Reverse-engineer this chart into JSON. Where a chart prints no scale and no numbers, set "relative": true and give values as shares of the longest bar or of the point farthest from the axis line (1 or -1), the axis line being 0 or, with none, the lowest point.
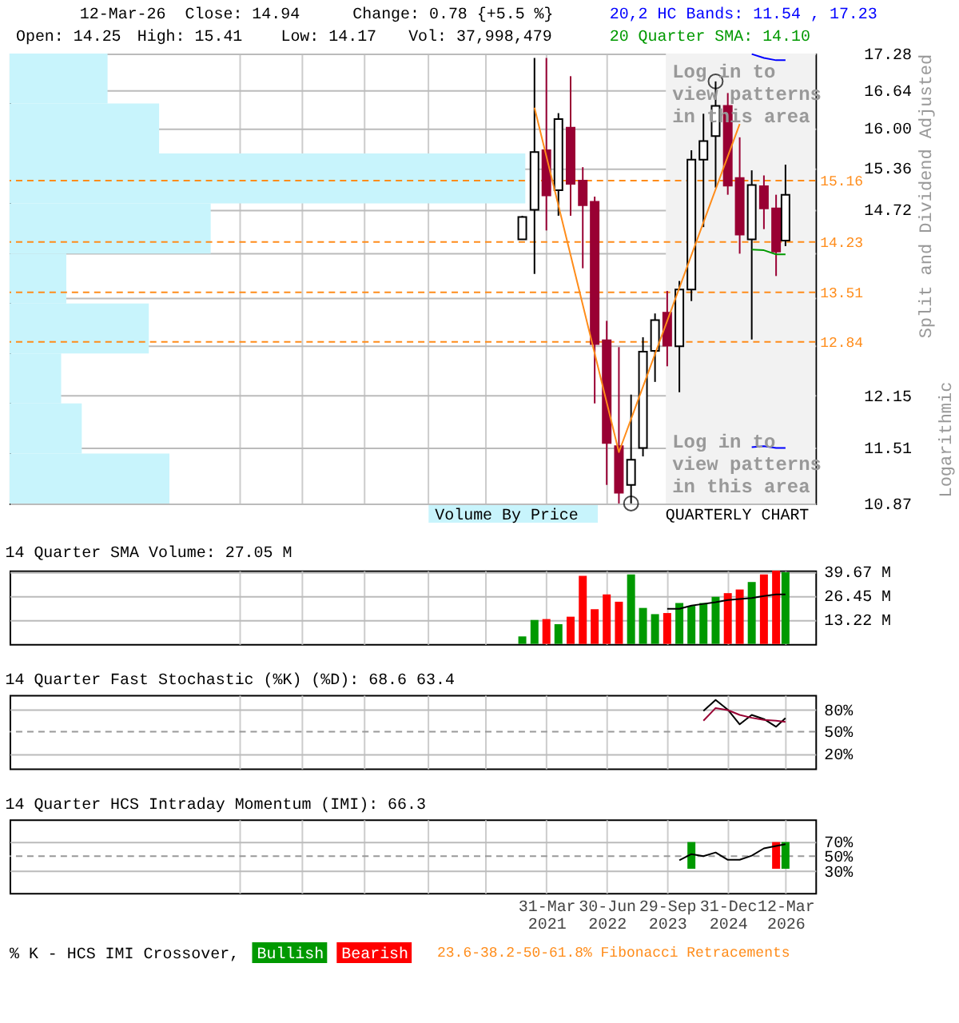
{
  "chart_data": [
    {
      "type": "candlestick",
      "x": [
        "2020-09-30",
        "2020-12-31",
        "2021-03-31",
        "2021-06-30",
        "2021-09-30",
        "2021-12-31",
        "2022-03-31",
        "2022-06-30",
        "2022-09-30",
        "2022-12-31",
        "2023-03-31",
        "2023-06-30",
        "2023-09-30",
        "2023-12-31",
        "2024-03-31",
        "2024-06-30",
        "2024-09-30",
        "2024-12-31",
        "2025-03-31",
        "2025-06-30",
        "2025-09-30",
        "2025-12-31",
        "2026-03-12"
      ],
      "ohlc": [
        [
          14.27,
          14.62,
          14.27,
          14.6
        ],
        [
          14.71,
          17.2,
          13.77,
          15.61
        ],
        [
          15.64,
          17.2,
          14.4,
          14.93
        ],
        [
          15.01,
          16.25,
          14.62,
          16.15
        ],
        [
          16.01,
          16.88,
          14.62,
          15.11
        ],
        [
          15.16,
          15.37,
          13.85,
          14.78
        ],
        [
          14.83,
          14.91,
          12.05,
          12.81
        ],
        [
          12.86,
          13.12,
          11.08,
          11.57
        ],
        [
          11.53,
          12.77,
          10.87,
          10.99
        ],
        [
          11.08,
          12.16,
          10.87,
          11.37
        ],
        [
          11.51,
          12.9,
          11.41,
          12.71
        ],
        [
          12.72,
          13.22,
          12.32,
          13.13
        ],
        [
          13.23,
          13.53,
          12.52,
          12.79
        ],
        [
          12.78,
          13.67,
          12.19,
          13.55
        ],
        [
          13.55,
          15.64,
          13.39,
          15.49
        ],
        [
          15.49,
          16.24,
          14.45,
          15.79
        ],
        [
          15.87,
          16.79,
          15.05,
          16.37
        ],
        [
          16.37,
          16.59,
          14.94,
          15.08
        ],
        [
          15.2,
          15.85,
          14.06,
          14.34
        ],
        [
          14.27,
          15.32,
          12.87,
          15.09
        ],
        [
          15.07,
          15.24,
          14.42,
          14.73
        ],
        [
          14.73,
          14.94,
          13.74,
          14.09
        ],
        [
          14.25,
          15.41,
          14.17,
          14.94
        ]
      ],
      "colors": [
        "#000000",
        "#000000",
        "#990033",
        "#000000",
        "#990033",
        "#990033",
        "#990033",
        "#990033",
        "#990033",
        "#000000",
        "#000000",
        "#000000",
        "#990033",
        "#000000",
        "#000000",
        "#000000",
        "#000000",
        "#990033",
        "#990033",
        "#000000",
        "#990033",
        "#990033",
        "#000000"
      ],
      "xlim": [
        "2010-02-20",
        "2026-10-24"
      ],
      "xticks": [
        {
          "value": "2014-11-25",
          "label": null
        },
        {
          "value": "2016-03-10",
          "label": null
        },
        {
          "value": "2017-06-25",
          "label": null
        },
        {
          "value": "2018-10-10",
          "label": null
        },
        {
          "value": "2019-12-25",
          "label": null
        },
        {
          "value": "2021-03-31",
          "label": null
        },
        {
          "value": "2022-06-30",
          "label": null
        },
        {
          "value": "2023-09-29",
          "label": null
        },
        {
          "value": "2024-12-31",
          "label": null
        },
        {
          "value": "2026-03-12",
          "label": null
        }
      ],
      "ylim": [
        10.87,
        17.28
      ],
      "yticks": [
        10.87,
        11.51,
        12.15,
        {
          "value": 12.8,
          "label": null
        },
        {
          "value": 13.44,
          "label": null
        },
        {
          "value": 14.08,
          "label": null
        },
        14.72,
        15.36,
        {
          "value": 16,
          "label": "16.00"
        },
        16.64,
        17.28
      ],
      "log": true,
      "grid": true,
      "tick_labels": "y",
      "legend": false,
      "ylabel": "Split and Dividend Adjusted",
      "series": [
        {
          "type": "line",
          "color": "#ff8c1a",
          "x": [
            "2020-12-31",
            "2022-09-30",
            "2025-03-31"
          ],
          "values": [
            16.34,
            11.46,
            16.07
          ]
        },
        {
          "type": "line",
          "color": "#0000ff",
          "x": [
            "2025-06-30",
            "2025-09-30",
            "2025-12-31",
            "2026-03-12"
          ],
          "values": [
            17.27,
            17.2,
            17.16,
            17.16
          ]
        },
        {
          "type": "line",
          "color": "#0000ff",
          "x": [
            "2025-06-30",
            "2025-09-30",
            "2025-12-31",
            "2026-03-12"
          ],
          "values": [
            11.52,
            11.53,
            11.51,
            11.51
          ]
        },
        {
          "type": "line",
          "color": "#009900",
          "x": [
            "2025-06-30",
            "2025-09-30",
            "2025-12-31",
            "2026-03-12"
          ],
          "values": [
            14.12,
            14.11,
            14.05,
            14.05
          ]
        },
        {
          "type": "scatter",
          "marker": "circle",
          "color": "#000000",
          "x": [
            "2022-12-31",
            "2024-09-30"
          ],
          "values": [
            10.87,
            16.79
          ]
        }
      ],
      "ref_lines": [
        {
          "axis": "y",
          "value": 15.16,
          "label": "15.16",
          "color": "#ff8c1a",
          "line_style": "dashed"
        },
        {
          "axis": "y",
          "value": 14.23,
          "label": "14.23",
          "color": "#ff8c1a",
          "line_style": "dashed"
        },
        {
          "axis": "y",
          "value": 13.51,
          "label": "13.51",
          "color": "#ff8c1a",
          "line_style": "dashed"
        },
        {
          "axis": "y",
          "value": 12.84,
          "label": "12.84",
          "color": "#ff8c1a",
          "line_style": "dashed"
        }
      ],
      "bands": [
        {
          "axis": "x",
          "from": "2023-09-20",
          "to": "2026-10-24",
          "color": "#f2f2f2"
        }
      ],
      "annotations": [
        "12-Mar-26",
        "Close: 14.94",
        "Change: 0.78 {+5.5 %}",
        "Open: 14.25",
        "High: 15.41",
        "Low: 14.17",
        "Vol: 37,998,479",
        "20,2 HC Bands: 11.54 , 17.23",
        "20 Quarter SMA: 14.10",
        "Log in to\nview patterns\nin this area",
        "Log in to\nview patterns\nin this area",
        "Logarithmic",
        "QUARTERLY CHART"
      ]
    },
    {
      "type": "bar",
      "orientation": "horizontal",
      "relative": true,
      "categories": [
        null,
        null,
        null,
        null,
        null,
        null,
        null,
        null,
        null
      ],
      "series": [
        {
          "name": "Volume By Price",
          "color": "#c8f4fc",
          "values": [
            0.19,
            0.29,
            1,
            0.39,
            0.11,
            0.27,
            0.1,
            0.14,
            0.31
          ]
        }
      ]
    },
    {
      "type": "bar",
      "title": "14 Quarter SMA Volume: 27.05 M",
      "x": [
        "2020-09-30",
        "2020-12-31",
        "2021-03-31",
        "2021-06-30",
        "2021-09-30",
        "2021-12-31",
        "2022-03-31",
        "2022-06-30",
        "2022-09-30",
        "2022-12-31",
        "2023-03-31",
        "2023-06-30",
        "2023-09-30",
        "2023-12-31",
        "2024-03-31",
        "2024-06-30",
        "2024-09-30",
        "2024-12-31",
        "2025-03-31",
        "2025-06-30",
        "2025-09-30",
        "2025-12-31",
        "2026-03-12"
      ],
      "xlim": [
        "2010-02-20",
        "2026-10-24"
      ],
      "xticks": [
        {
          "value": "2014-11-25",
          "label": null
        },
        {
          "value": "2016-03-10",
          "label": null
        },
        {
          "value": "2017-06-25",
          "label": null
        },
        {
          "value": "2018-10-10",
          "label": null
        },
        {
          "value": "2019-12-25",
          "label": null
        },
        {
          "value": "2021-03-31",
          "label": null
        },
        {
          "value": "2022-06-30",
          "label": null
        },
        {
          "value": "2023-09-29",
          "label": null
        },
        {
          "value": "2024-12-31",
          "label": null
        },
        {
          "value": "2026-03-12",
          "label": null
        }
      ],
      "ylim": [
        0,
        40.2
      ],
      "yticks": [
        {
          "value": 13.22,
          "label": "13.22 M"
        },
        {
          "value": 26.45,
          "label": "26.45 M"
        },
        {
          "value": 39.67,
          "label": "39.67 M"
        }
      ],
      "grid": true,
      "tick_labels": "y",
      "legend": false,
      "series": [
        {
          "type": "bar",
          "values": [
            4.1,
            13.1,
            13.6,
            10.8,
            14.9,
            37.3,
            19.0,
            27.1,
            23.1,
            38.0,
            19.7,
            16.3,
            16.9,
            22.4,
            20.8,
            22.4,
            25.8,
            27.8,
            29.8,
            33.9,
            38.0,
            40.1,
            39.3
          ],
          "colors": [
            "#009900",
            "#009900",
            "#ff0000",
            "#009900",
            "#ff0000",
            "#ff0000",
            "#ff0000",
            "#ff0000",
            "#ff0000",
            "#009900",
            "#009900",
            "#009900",
            "#ff0000",
            "#009900",
            "#009900",
            "#009900",
            "#009900",
            "#ff0000",
            "#ff0000",
            "#009900",
            "#ff0000",
            "#ff0000",
            "#009900"
          ]
        },
        {
          "type": "line",
          "color": "#000000",
          "x": [
            "2023-09-30",
            "2023-12-31",
            "2024-03-31",
            "2024-06-30",
            "2024-09-30",
            "2024-12-31",
            "2025-03-31",
            "2025-06-30",
            "2025-09-30",
            "2025-12-31",
            "2026-03-12"
          ],
          "values": [
            19.2,
            19.2,
            21.0,
            21.9,
            22.8,
            24.0,
            24.6,
            25.1,
            26.2,
            27.1,
            27.05
          ]
        }
      ]
    },
    {
      "type": "line",
      "title": "14 Quarter Fast Stochastic (%K) (%D): 68.6  63.4",
      "xlim": [
        "2010-02-20",
        "2026-10-24"
      ],
      "xticks": [
        {
          "value": "2014-11-25",
          "label": null
        },
        {
          "value": "2016-03-10",
          "label": null
        },
        {
          "value": "2017-06-25",
          "label": null
        },
        {
          "value": "2018-10-10",
          "label": null
        },
        {
          "value": "2019-12-25",
          "label": null
        },
        {
          "value": "2021-03-31",
          "label": null
        },
        {
          "value": "2022-06-30",
          "label": null
        },
        {
          "value": "2023-09-29",
          "label": null
        },
        {
          "value": "2024-12-31",
          "label": null
        },
        {
          "value": "2026-03-12",
          "label": null
        }
      ],
      "ylim": [
        0,
        100
      ],
      "yticks": [
        {
          "value": 20,
          "label": "20%"
        },
        {
          "value": 50,
          "label": "50%"
        },
        {
          "value": 80,
          "label": "80%"
        }
      ],
      "grid": true,
      "tick_labels": "y",
      "legend": false,
      "series": [
        {
          "type": "line",
          "color": "#000000",
          "x": [
            "2024-12-31",
            "2025-03-31",
            "2025-06-30",
            "2025-09-30",
            "2025-12-31",
            "2026-03-12",
            "2024-09-30",
            "2024-06-30"
          ],
          "values": [
            80,
            60,
            72.8,
            67.2,
            56.7,
            68.6,
            93.3,
            78.3
          ]
        },
        {
          "type": "line",
          "color": "#990033",
          "x": [
            "2024-06-30",
            "2024-09-30",
            "2024-12-31",
            "2025-03-31",
            "2025-06-30",
            "2025-09-30",
            "2025-12-31",
            "2026-03-12"
          ],
          "values": [
            65,
            82.2,
            79.4,
            72.8,
            68.9,
            66.1,
            65,
            63.4
          ]
        }
      ],
      "ref_lines": [
        {
          "axis": "y",
          "value": 50,
          "color": "#999999",
          "line_style": "dashed"
        }
      ]
    },
    {
      "type": "line",
      "title": "14 Quarter HCS Intraday Momentum (IMI): 66.3",
      "xlim": [
        "2010-02-20",
        "2026-10-24"
      ],
      "xticks": [
        {
          "value": "2014-11-25",
          "label": null
        },
        {
          "value": "2016-03-10",
          "label": null
        },
        {
          "value": "2017-06-25",
          "label": null
        },
        {
          "value": "2018-10-10",
          "label": null
        },
        {
          "value": "2019-12-25",
          "label": null
        },
        {
          "value": "2021-03-31",
          "label": "31-Mar 2021"
        },
        {
          "value": "2022-06-30",
          "label": "30-Jun 2022"
        },
        {
          "value": "2023-09-29",
          "label": "29-Sep 2023"
        },
        {
          "value": "2024-12-31",
          "label": "31-Dec 2024"
        },
        {
          "value": "2026-03-12",
          "label": "12-Mar 2026"
        }
      ],
      "ylim": [
        0,
        100
      ],
      "yticks": [
        {
          "value": 30,
          "label": "30%"
        },
        {
          "value": 50,
          "label": "50%"
        },
        {
          "value": 70,
          "label": "70%"
        }
      ],
      "grid": true,
      "legend": "bottom",
      "series": [
        {
          "name": "Bullish",
          "type": "bar",
          "color": "#009900",
          "x": [
            "2024-03-31",
            "2026-03-12"
          ],
          "base": [
            32.8,
            32.8
          ],
          "values": [
            36.4,
            36.4
          ]
        },
        {
          "name": "Bearish",
          "type": "bar",
          "color": "#ff0000",
          "x": [
            "2025-12-31"
          ],
          "base": [
            32.8
          ],
          "values": [
            36.4
          ]
        },
        {
          "type": "line",
          "color": "#000000",
          "x": [
            "2023-12-31",
            "2024-03-31",
            "2024-06-30",
            "2024-09-30",
            "2024-12-31",
            "2025-03-31",
            "2025-06-30",
            "2025-09-30",
            "2025-12-31",
            "2026-03-12"
          ],
          "values": [
            44.4,
            52.8,
            50,
            55,
            45,
            45,
            50.6,
            60.6,
            63.9,
            66.3
          ]
        }
      ],
      "ref_lines": [
        {
          "axis": "y",
          "value": 50,
          "color": "#999999",
          "line_style": "dashed"
        }
      ],
      "annotations": [
        "% K - HCS IMI Crossover,",
        "23.6-38.2-50-61.8% Fibonacci Retracements"
      ]
    }
  ]
}
